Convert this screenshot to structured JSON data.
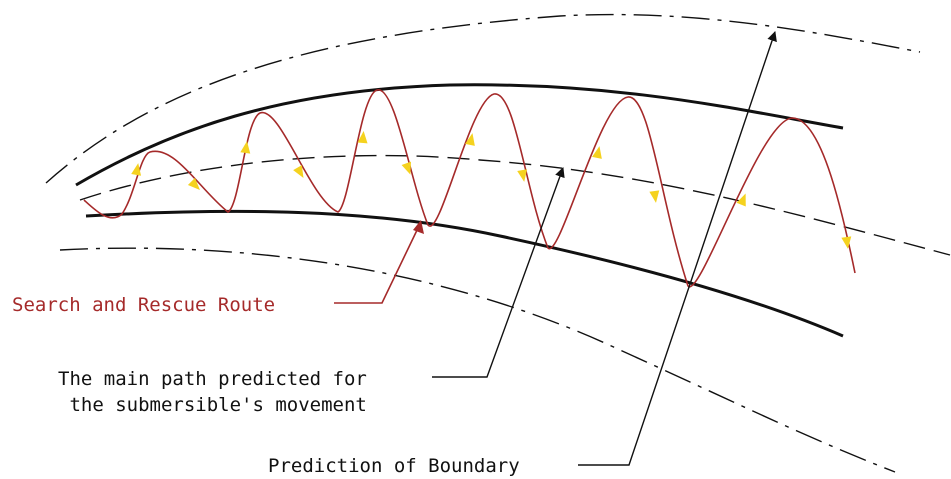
{
  "colors": {
    "route": "#a52a2a",
    "arrow_fill": "#f5d21f",
    "line": "#111111",
    "background": "#ffffff"
  },
  "labels": {
    "search_route": "Search and Rescue Route",
    "main_path_line1": "The main path predicted for",
    "main_path_line2": "the submersible's movement",
    "boundary": "Prediction of Boundary"
  }
}
